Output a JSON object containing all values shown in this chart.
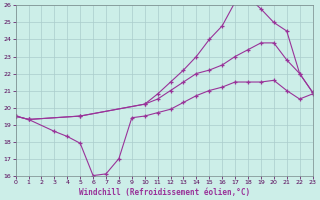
{
  "xlabel": "Windchill (Refroidissement éolien,°C)",
  "bg_color": "#cceee8",
  "grid_color": "#aacccc",
  "line_color": "#993399",
  "xmin": 0,
  "xmax": 23,
  "ymin": 16,
  "ymax": 26,
  "line1_x": [
    0,
    1,
    3,
    4,
    5,
    6,
    7,
    8,
    9,
    10,
    11,
    12,
    13,
    14,
    15,
    16,
    17,
    18,
    19,
    20,
    21,
    22,
    23
  ],
  "line1_y": [
    19.5,
    19.3,
    18.6,
    18.3,
    17.9,
    16.0,
    16.1,
    17.0,
    19.4,
    19.5,
    19.7,
    19.9,
    20.3,
    20.7,
    21.0,
    21.2,
    21.5,
    21.5,
    21.5,
    21.6,
    21.0,
    20.5,
    20.8
  ],
  "line2_x": [
    0,
    1,
    5,
    10,
    11,
    12,
    13,
    14,
    15,
    16,
    17,
    18,
    19,
    20,
    21,
    22,
    23
  ],
  "line2_y": [
    19.5,
    19.3,
    19.5,
    20.2,
    20.5,
    21.0,
    21.5,
    22.0,
    22.2,
    22.5,
    23.0,
    23.4,
    23.8,
    23.8,
    22.8,
    22.0,
    20.9
  ],
  "line3_x": [
    0,
    1,
    5,
    10,
    11,
    12,
    13,
    14,
    15,
    16,
    17,
    18,
    19,
    20,
    21,
    22,
    23
  ],
  "line3_y": [
    19.5,
    19.3,
    19.5,
    20.2,
    20.8,
    21.5,
    22.2,
    23.0,
    24.0,
    24.8,
    26.2,
    26.5,
    25.8,
    25.0,
    24.5,
    22.0,
    20.9
  ]
}
